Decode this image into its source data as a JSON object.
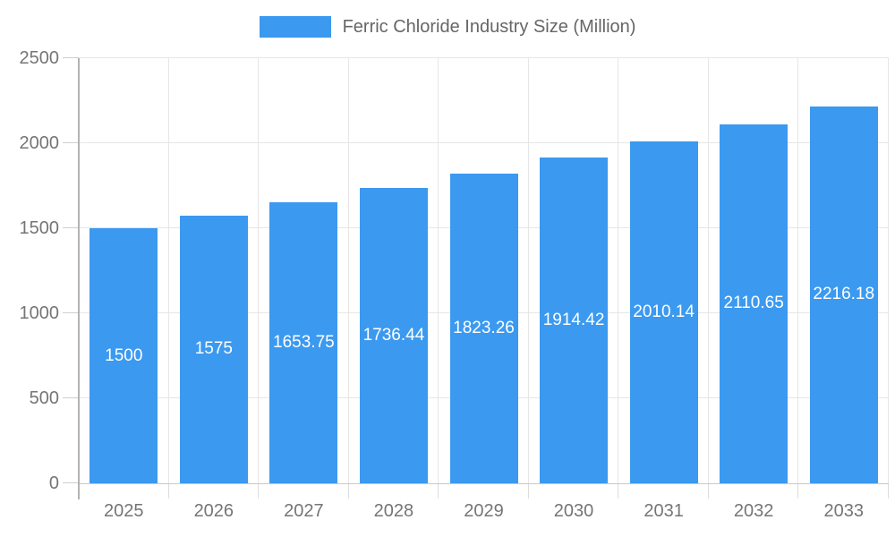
{
  "legend": {
    "label": "Ferric Chloride Industry Size (Million)"
  },
  "colors": {
    "bar": "#3b99f0",
    "grid": "#e6e6e6",
    "axis_line": "#b3b3b3",
    "tick_label": "#757575",
    "legend_text": "#666666",
    "value_label": "#ffffff"
  },
  "chart_data": {
    "type": "bar",
    "title": "Ferric Chloride Industry Size (Million)",
    "categories": [
      "2025",
      "2026",
      "2027",
      "2028",
      "2029",
      "2030",
      "2031",
      "2032",
      "2033"
    ],
    "values": [
      1500,
      1575,
      1653.75,
      1736.44,
      1823.26,
      1914.42,
      2010.14,
      2110.65,
      2216.18
    ],
    "value_labels": [
      "1500",
      "1575",
      "1653.75",
      "1736.44",
      "1823.26",
      "1914.42",
      "2010.14",
      "2110.65",
      "2216.18"
    ],
    "xlabel": "",
    "ylabel": "",
    "ylim": [
      0,
      2500
    ],
    "y_ticks": [
      0,
      500,
      1000,
      1500,
      2000,
      2500
    ],
    "grid": true,
    "legend_position": "top",
    "bar_color": "#3b99f0"
  }
}
